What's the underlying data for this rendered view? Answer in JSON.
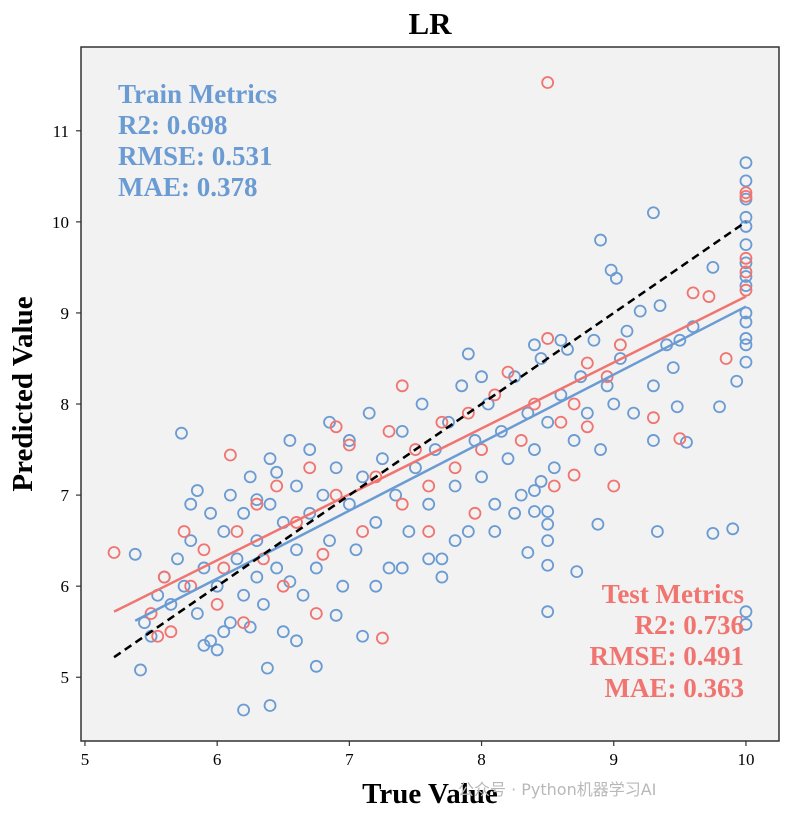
{
  "chart_data": {
    "type": "scatter",
    "title": "LR",
    "xlabel": "True Value",
    "ylabel": "Predicted Value",
    "xlim": [
      4.97,
      10.25
    ],
    "ylim": [
      4.3,
      11.92
    ],
    "xticks": [
      5,
      6,
      7,
      8,
      9,
      10
    ],
    "yticks": [
      5,
      6,
      7,
      8,
      9,
      10,
      11
    ],
    "grid": false,
    "colors": {
      "train": "#6A9BD3",
      "test": "#F07470",
      "background": "#F2F2F2",
      "diagonal": "#000000"
    },
    "train_metrics": {
      "title": "Train Metrics",
      "r2": "R2: 0.698",
      "rmse": "RMSE: 0.531",
      "mae": "MAE: 0.378",
      "placement": "top-left"
    },
    "test_metrics": {
      "title": "Test Metrics",
      "r2": "R2: 0.736",
      "rmse": "RMSE: 0.491",
      "mae": "MAE: 0.363",
      "placement": "bottom-right"
    },
    "diagonal": {
      "x": [
        5.22,
        10
      ],
      "y": [
        5.22,
        10
      ]
    },
    "train_fit": {
      "x": [
        5.38,
        10
      ],
      "y": [
        5.62,
        9.07
      ]
    },
    "test_fit": {
      "x": [
        5.22,
        10
      ],
      "y": [
        5.72,
        9.18
      ]
    },
    "series": [
      {
        "name": "Train",
        "points": [
          [
            10,
            10.65
          ],
          [
            10,
            10.45
          ],
          [
            10,
            10.25
          ],
          [
            10,
            10.05
          ],
          [
            10,
            9.95
          ],
          [
            10,
            9.75
          ],
          [
            10,
            9.55
          ],
          [
            10,
            9.4
          ],
          [
            10,
            9.3
          ],
          [
            10,
            9.0
          ],
          [
            10,
            8.9
          ],
          [
            10,
            8.72
          ],
          [
            10,
            8.65
          ],
          [
            10,
            8.46
          ],
          [
            10,
            5.72
          ],
          [
            10,
            5.58
          ],
          [
            9.3,
            10.1
          ],
          [
            8.9,
            9.8
          ],
          [
            8.98,
            9.47
          ],
          [
            9.02,
            9.38
          ],
          [
            9.75,
            9.5
          ],
          [
            9.93,
            8.25
          ],
          [
            9.8,
            7.97
          ],
          [
            9.9,
            6.63
          ],
          [
            9.75,
            6.58
          ],
          [
            9.33,
            6.6
          ],
          [
            8.88,
            6.68
          ],
          [
            8.72,
            6.16
          ],
          [
            8.5,
            5.72
          ],
          [
            8.5,
            6.23
          ],
          [
            8.5,
            6.5
          ],
          [
            8.5,
            6.68
          ],
          [
            8.5,
            6.82
          ],
          [
            8.35,
            6.37
          ],
          [
            8.4,
            6.82
          ],
          [
            6.4,
            4.69
          ],
          [
            6.2,
            4.64
          ],
          [
            6.38,
            5.1
          ],
          [
            6.75,
            5.12
          ],
          [
            5.42,
            5.08
          ],
          [
            5.73,
            7.68
          ],
          [
            5.38,
            6.35
          ],
          [
            7.1,
            5.45
          ],
          [
            6.9,
            5.68
          ],
          [
            9.48,
            7.97
          ],
          [
            9.55,
            7.58
          ],
          [
            9.3,
            7.6
          ],
          [
            9.15,
            7.9
          ],
          [
            9.5,
            8.7
          ],
          [
            9.6,
            8.85
          ],
          [
            9.4,
            8.65
          ],
          [
            9.2,
            9.02
          ],
          [
            9.35,
            9.08
          ],
          [
            9.1,
            8.8
          ],
          [
            9.45,
            8.4
          ],
          [
            9.3,
            8.2
          ],
          [
            5.45,
            5.6
          ],
          [
            5.5,
            5.45
          ],
          [
            5.55,
            5.9
          ],
          [
            5.6,
            6.1
          ],
          [
            5.65,
            5.8
          ],
          [
            5.7,
            6.3
          ],
          [
            5.75,
            6.0
          ],
          [
            5.8,
            6.5
          ],
          [
            5.85,
            5.7
          ],
          [
            5.9,
            6.2
          ],
          [
            5.95,
            5.4
          ],
          [
            5.95,
            6.8
          ],
          [
            6.0,
            6.0
          ],
          [
            6.05,
            6.6
          ],
          [
            6.1,
            5.6
          ],
          [
            6.1,
            7.0
          ],
          [
            6.15,
            6.3
          ],
          [
            6.2,
            5.9
          ],
          [
            6.2,
            6.8
          ],
          [
            6.25,
            7.2
          ],
          [
            6.3,
            6.1
          ],
          [
            6.3,
            6.5
          ],
          [
            6.35,
            5.8
          ],
          [
            6.4,
            7.4
          ],
          [
            6.4,
            6.9
          ],
          [
            6.45,
            6.2
          ],
          [
            6.5,
            6.7
          ],
          [
            6.5,
            5.5
          ],
          [
            6.55,
            7.6
          ],
          [
            6.6,
            6.4
          ],
          [
            6.6,
            7.1
          ],
          [
            6.65,
            5.9
          ],
          [
            6.7,
            6.8
          ],
          [
            6.7,
            7.5
          ],
          [
            6.75,
            6.2
          ],
          [
            6.8,
            7.0
          ],
          [
            6.85,
            7.8
          ],
          [
            6.85,
            6.5
          ],
          [
            6.9,
            7.3
          ],
          [
            6.95,
            6.0
          ],
          [
            7.0,
            6.9
          ],
          [
            7.0,
            7.6
          ],
          [
            7.05,
            6.4
          ],
          [
            7.1,
            7.2
          ],
          [
            7.15,
            7.9
          ],
          [
            7.2,
            6.7
          ],
          [
            7.25,
            7.4
          ],
          [
            7.3,
            6.2
          ],
          [
            7.35,
            7.0
          ],
          [
            7.4,
            7.7
          ],
          [
            7.45,
            6.6
          ],
          [
            7.5,
            7.3
          ],
          [
            7.55,
            8.0
          ],
          [
            7.6,
            6.9
          ],
          [
            7.65,
            7.5
          ],
          [
            7.7,
            6.3
          ],
          [
            7.75,
            7.8
          ],
          [
            7.8,
            7.1
          ],
          [
            7.85,
            8.2
          ],
          [
            7.9,
            6.6
          ],
          [
            7.95,
            7.6
          ],
          [
            8.0,
            7.2
          ],
          [
            8.05,
            8.0
          ],
          [
            8.1,
            6.9
          ],
          [
            8.15,
            7.7
          ],
          [
            8.2,
            7.4
          ],
          [
            8.25,
            8.3
          ],
          [
            8.3,
            7.0
          ],
          [
            8.35,
            7.9
          ],
          [
            8.4,
            7.5
          ],
          [
            8.45,
            8.5
          ],
          [
            8.5,
            7.8
          ],
          [
            8.55,
            7.3
          ],
          [
            8.6,
            8.1
          ],
          [
            8.65,
            8.6
          ],
          [
            8.7,
            7.6
          ],
          [
            8.75,
            8.3
          ],
          [
            8.8,
            7.9
          ],
          [
            8.85,
            8.7
          ],
          [
            8.9,
            7.5
          ],
          [
            8.95,
            8.2
          ],
          [
            9.0,
            8.0
          ],
          [
            9.05,
            8.5
          ],
          [
            6.0,
            5.3
          ],
          [
            6.05,
            5.5
          ],
          [
            5.9,
            5.35
          ],
          [
            6.25,
            5.55
          ],
          [
            5.8,
            6.9
          ],
          [
            5.85,
            7.05
          ],
          [
            6.3,
            6.95
          ],
          [
            6.45,
            7.25
          ],
          [
            6.6,
            5.4
          ],
          [
            6.55,
            6.05
          ],
          [
            7.2,
            6.0
          ],
          [
            7.4,
            6.2
          ],
          [
            7.6,
            6.3
          ],
          [
            7.7,
            6.1
          ],
          [
            7.8,
            6.5
          ],
          [
            8.1,
            6.6
          ],
          [
            8.25,
            6.8
          ],
          [
            8.4,
            7.05
          ],
          [
            8.45,
            7.15
          ],
          [
            7.9,
            8.55
          ],
          [
            8.0,
            8.3
          ],
          [
            8.4,
            8.65
          ],
          [
            8.6,
            8.7
          ]
        ]
      },
      {
        "name": "Test",
        "points": [
          [
            8.5,
            11.53
          ],
          [
            10,
            10.32
          ],
          [
            10,
            10.28
          ],
          [
            10,
            9.6
          ],
          [
            10,
            9.45
          ],
          [
            10,
            9.25
          ],
          [
            9.72,
            9.18
          ],
          [
            9.6,
            9.22
          ],
          [
            9.85,
            8.5
          ],
          [
            9.0,
            7.1
          ],
          [
            9.5,
            7.62
          ],
          [
            9.3,
            7.85
          ],
          [
            8.7,
            7.22
          ],
          [
            8.55,
            7.1
          ],
          [
            7.25,
            5.43
          ],
          [
            5.22,
            6.37
          ],
          [
            6.1,
            7.44
          ],
          [
            7.4,
            8.2
          ],
          [
            8.2,
            8.35
          ],
          [
            8.5,
            8.72
          ],
          [
            8.8,
            8.45
          ],
          [
            9.05,
            8.65
          ],
          [
            8.95,
            8.3
          ],
          [
            8.8,
            7.75
          ],
          [
            8.7,
            8.0
          ],
          [
            5.5,
            5.7
          ],
          [
            5.6,
            6.1
          ],
          [
            5.65,
            5.5
          ],
          [
            5.75,
            6.6
          ],
          [
            5.8,
            6.0
          ],
          [
            5.9,
            6.4
          ],
          [
            6.0,
            5.8
          ],
          [
            6.05,
            6.2
          ],
          [
            6.15,
            6.6
          ],
          [
            6.2,
            5.6
          ],
          [
            6.3,
            6.9
          ],
          [
            6.35,
            6.3
          ],
          [
            6.45,
            7.1
          ],
          [
            6.5,
            6.0
          ],
          [
            6.6,
            6.7
          ],
          [
            6.7,
            7.3
          ],
          [
            6.8,
            6.35
          ],
          [
            6.9,
            7.0
          ],
          [
            7.0,
            7.55
          ],
          [
            7.1,
            6.6
          ],
          [
            7.2,
            7.2
          ],
          [
            7.3,
            7.7
          ],
          [
            7.4,
            6.9
          ],
          [
            7.5,
            7.5
          ],
          [
            7.6,
            7.1
          ],
          [
            7.7,
            7.8
          ],
          [
            7.8,
            7.3
          ],
          [
            7.9,
            7.9
          ],
          [
            8.0,
            7.5
          ],
          [
            8.1,
            8.1
          ],
          [
            8.3,
            7.6
          ],
          [
            8.4,
            8.0
          ],
          [
            8.6,
            7.8
          ],
          [
            6.75,
            5.7
          ],
          [
            7.6,
            6.6
          ],
          [
            7.95,
            6.8
          ],
          [
            5.55,
            5.45
          ],
          [
            6.9,
            7.75
          ]
        ]
      }
    ]
  },
  "watermark": "公众号 · Python机器学习AI"
}
